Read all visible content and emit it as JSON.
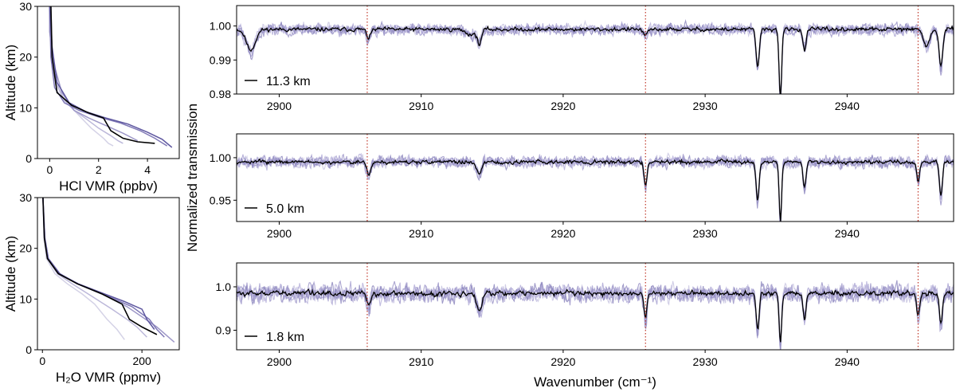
{
  "chart_data": [
    {
      "type": "line",
      "xlabel": "HCl VMR (ppbv)",
      "ylabel": "Altitude (km)",
      "xlim": [
        -0.5,
        5.3
      ],
      "ylim": [
        0,
        30
      ],
      "xticks": [
        0,
        2,
        4
      ],
      "yticks": [
        0,
        10,
        20,
        30
      ],
      "series": [
        {
          "color": "#d4d2e6",
          "x": [
            0.05,
            0.1,
            0.2,
            0.5,
            0.9,
            1.3,
            1.7,
            2.2,
            2.4,
            2.6
          ],
          "y": [
            30,
            20,
            16,
            12,
            10,
            8,
            6,
            4,
            3,
            2.5
          ]
        },
        {
          "color": "#bcb8da",
          "x": [
            0.05,
            0.1,
            0.25,
            0.6,
            1.0,
            1.5,
            2.0,
            2.5,
            2.8,
            3.0
          ],
          "y": [
            30,
            21,
            15,
            11.5,
            9.5,
            7.8,
            6,
            4.5,
            3.5,
            3.0
          ]
        },
        {
          "color": "#9e98c8",
          "x": [
            0.0,
            0.0,
            0.15,
            0.5,
            1.0,
            1.6,
            2.3,
            3.0,
            3.4,
            3.6
          ],
          "y": [
            30,
            25,
            19,
            13,
            9.5,
            8,
            6.5,
            5,
            4,
            3.5
          ]
        },
        {
          "color": "#7f78b6",
          "x": [
            0.0,
            0.05,
            0.2,
            0.6,
            1.2,
            2.0,
            2.9,
            3.7,
            4.3,
            4.8
          ],
          "y": [
            30,
            20,
            14,
            11,
            9.5,
            8.2,
            7,
            5.5,
            4,
            2.5
          ]
        },
        {
          "color": "#5f58a0",
          "x": [
            0.0,
            0.1,
            0.3,
            0.8,
            1.5,
            2.3,
            3.2,
            4.0,
            4.6,
            5.0
          ],
          "y": [
            30,
            22,
            15,
            11,
            9.2,
            8,
            6.8,
            5.2,
            3.8,
            2.2
          ]
        },
        {
          "color": "#000000",
          "x": [
            0.05,
            0.1,
            0.3,
            0.9,
            1.6,
            2.2,
            2.5,
            3.0,
            3.6,
            4.3
          ],
          "y": [
            30,
            20,
            13,
            10.5,
            9,
            8,
            5.5,
            4,
            3.3,
            3.0
          ]
        }
      ]
    },
    {
      "type": "line",
      "xlabel": "H₂O VMR (ppmv)",
      "ylabel": "Altitude (km)",
      "xlim": [
        -10,
        275
      ],
      "ylim": [
        0,
        30
      ],
      "xticks": [
        0,
        200
      ],
      "yticks": [
        0,
        10,
        20,
        30
      ],
      "series": [
        {
          "color": "#d4d2e6",
          "x": [
            1,
            3,
            8,
            25,
            50,
            80,
            105,
            130,
            150,
            165
          ],
          "y": [
            30,
            22,
            18,
            15,
            13,
            11,
            9,
            6,
            4,
            2
          ]
        },
        {
          "color": "#bcb8da",
          "x": [
            1,
            4,
            10,
            30,
            60,
            100,
            140,
            170,
            190,
            210
          ],
          "y": [
            30,
            22,
            18,
            15,
            13,
            10.5,
            8,
            6,
            4.5,
            2.5
          ]
        },
        {
          "color": "#9e98c8",
          "x": [
            1,
            5,
            12,
            35,
            70,
            120,
            170,
            200,
            230,
            265
          ],
          "y": [
            30,
            22,
            18,
            15,
            13,
            11,
            8.5,
            6.5,
            4.5,
            1.5
          ]
        },
        {
          "color": "#7f78b6",
          "x": [
            1,
            5,
            12,
            35,
            70,
            120,
            180,
            215,
            230,
            245
          ],
          "y": [
            30,
            22,
            18,
            15,
            13,
            11,
            8.5,
            6,
            4,
            2.5
          ]
        },
        {
          "color": "#5f58a0",
          "x": [
            1,
            4,
            11,
            34,
            72,
            125,
            165,
            200,
            210,
            225
          ],
          "y": [
            30,
            22,
            18,
            15,
            13,
            11,
            9.5,
            8,
            6,
            4
          ]
        },
        {
          "color": "#000000",
          "x": [
            1,
            4,
            10,
            32,
            70,
            120,
            160,
            175,
            200,
            230
          ],
          "y": [
            30,
            22,
            18,
            15,
            13,
            11,
            9,
            6,
            4.5,
            3
          ]
        }
      ]
    },
    {
      "type": "line",
      "panel_label": "11.3 km",
      "xlim": [
        2897,
        2947.5
      ],
      "ylim": [
        0.98,
        1.006
      ],
      "yticks": [
        0.98,
        0.99,
        1.0
      ],
      "ytick_labels": [
        "0.98",
        "0.99",
        "1.00"
      ],
      "xticks": [
        2900,
        2910,
        2920,
        2930,
        2940
      ],
      "baseline": 0.999,
      "amp_dark": 0.0008,
      "amp_light": 0.0022,
      "vlines": [
        2906.2,
        2925.8,
        2945.0
      ],
      "absorption_lines": [
        {
          "x": 2898.0,
          "depth": 0.006,
          "width": 0.45
        },
        {
          "x": 2906.3,
          "depth": 0.0025,
          "width": 0.2
        },
        {
          "x": 2913.5,
          "depth": 0.0015,
          "width": 0.5
        },
        {
          "x": 2914.1,
          "depth": 0.004,
          "width": 0.2
        },
        {
          "x": 2925.8,
          "depth": 0.002,
          "width": 0.2
        },
        {
          "x": 2933.7,
          "depth": 0.011,
          "width": 0.16
        },
        {
          "x": 2935.3,
          "depth": 0.02,
          "width": 0.13
        },
        {
          "x": 2937.0,
          "depth": 0.006,
          "width": 0.16
        },
        {
          "x": 2945.6,
          "depth": 0.005,
          "width": 0.3
        },
        {
          "x": 2946.6,
          "depth": 0.011,
          "width": 0.18
        }
      ]
    },
    {
      "type": "line",
      "panel_label": "5.0 km",
      "xlim": [
        2897,
        2947.5
      ],
      "ylim": [
        0.925,
        1.028
      ],
      "yticks": [
        0.95,
        1.0
      ],
      "ytick_labels": [
        "0.95",
        "1.00"
      ],
      "xticks": [
        2900,
        2910,
        2920,
        2930,
        2940
      ],
      "ylabel": "Normalized transmission",
      "baseline": 0.995,
      "amp_dark": 0.003,
      "amp_light": 0.009,
      "vlines": [
        2906.2,
        2925.8,
        2945.0
      ],
      "absorption_lines": [
        {
          "x": 2906.3,
          "depth": 0.015,
          "width": 0.2
        },
        {
          "x": 2914.1,
          "depth": 0.015,
          "width": 0.25
        },
        {
          "x": 2925.8,
          "depth": 0.028,
          "width": 0.14
        },
        {
          "x": 2933.7,
          "depth": 0.045,
          "width": 0.15
        },
        {
          "x": 2935.3,
          "depth": 0.07,
          "width": 0.12
        },
        {
          "x": 2937.0,
          "depth": 0.03,
          "width": 0.15
        },
        {
          "x": 2945.0,
          "depth": 0.022,
          "width": 0.14
        },
        {
          "x": 2946.6,
          "depth": 0.04,
          "width": 0.15
        }
      ]
    },
    {
      "type": "line",
      "panel_label": "1.8 km",
      "xlim": [
        2897,
        2947.5
      ],
      "ylim": [
        0.855,
        1.055
      ],
      "yticks": [
        0.9,
        1.0
      ],
      "ytick_labels": [
        "0.9",
        "1.0"
      ],
      "xticks": [
        2900,
        2910,
        2920,
        2930,
        2940
      ],
      "xlabel": "Wavenumber (cm⁻¹)",
      "baseline": 0.985,
      "amp_dark": 0.008,
      "amp_light": 0.028,
      "vlines": [
        2906.2,
        2925.8,
        2945.0
      ],
      "absorption_lines": [
        {
          "x": 2906.3,
          "depth": 0.03,
          "width": 0.2
        },
        {
          "x": 2914.1,
          "depth": 0.04,
          "width": 0.25
        },
        {
          "x": 2925.8,
          "depth": 0.06,
          "width": 0.14
        },
        {
          "x": 2933.7,
          "depth": 0.085,
          "width": 0.15
        },
        {
          "x": 2935.3,
          "depth": 0.11,
          "width": 0.12
        },
        {
          "x": 2937.0,
          "depth": 0.06,
          "width": 0.15
        },
        {
          "x": 2945.0,
          "depth": 0.05,
          "width": 0.14
        },
        {
          "x": 2946.6,
          "depth": 0.07,
          "width": 0.15
        }
      ]
    }
  ],
  "colors": {
    "measured": "#000000",
    "models": [
      "#d4d2e6",
      "#bcb8da",
      "#9e98c8",
      "#7f78b6",
      "#5f58a0"
    ],
    "spectra_light": "#9d97c9",
    "reference_line": "#c0392b"
  }
}
